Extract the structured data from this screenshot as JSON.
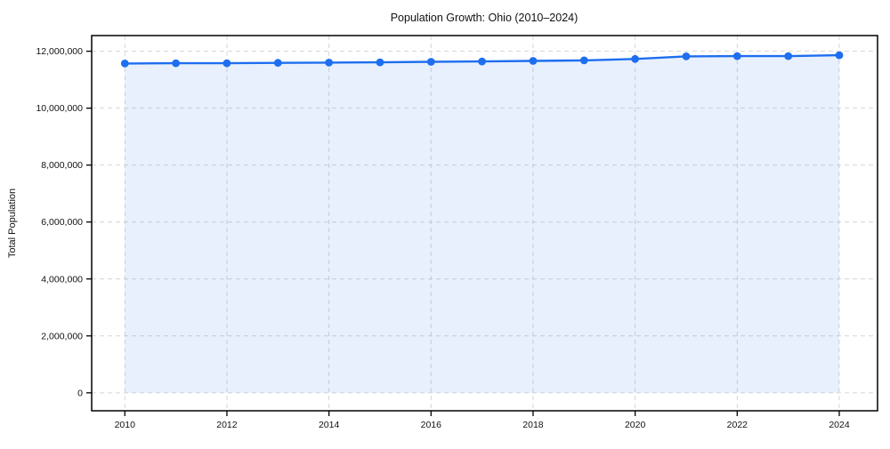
{
  "figure": {
    "background": "#ffffff"
  },
  "chart_data": {
    "type": "area",
    "title": "Population Growth: Ohio (2010–2024)",
    "xlabel": "",
    "ylabel": "Total Population",
    "x": [
      2010,
      2011,
      2012,
      2013,
      2014,
      2015,
      2016,
      2017,
      2018,
      2019,
      2020,
      2021,
      2022,
      2023,
      2024
    ],
    "series": [
      {
        "name": "Total Population",
        "values": [
          11570000,
          11580000,
          11580000,
          11590000,
          11600000,
          11610000,
          11630000,
          11640000,
          11660000,
          11680000,
          11730000,
          11820000,
          11830000,
          11830000,
          11860000
        ]
      }
    ],
    "xticks": [
      2010,
      2012,
      2014,
      2016,
      2018,
      2020,
      2022,
      2024
    ],
    "yticks": [
      0,
      2000000,
      4000000,
      6000000,
      8000000,
      10000000,
      12000000
    ],
    "xlim": [
      2009.35,
      2024.75
    ],
    "ylim": [
      -630000,
      12550000
    ],
    "area_baseline": 0,
    "grid": true,
    "grid_style": "dashed",
    "legend": false,
    "marker": "circle",
    "colors": {
      "line": "#1e6ef0",
      "fill_opacity": 0.1,
      "grid": "#d6d6d6",
      "axis": "#000000",
      "text": "#111111"
    }
  }
}
